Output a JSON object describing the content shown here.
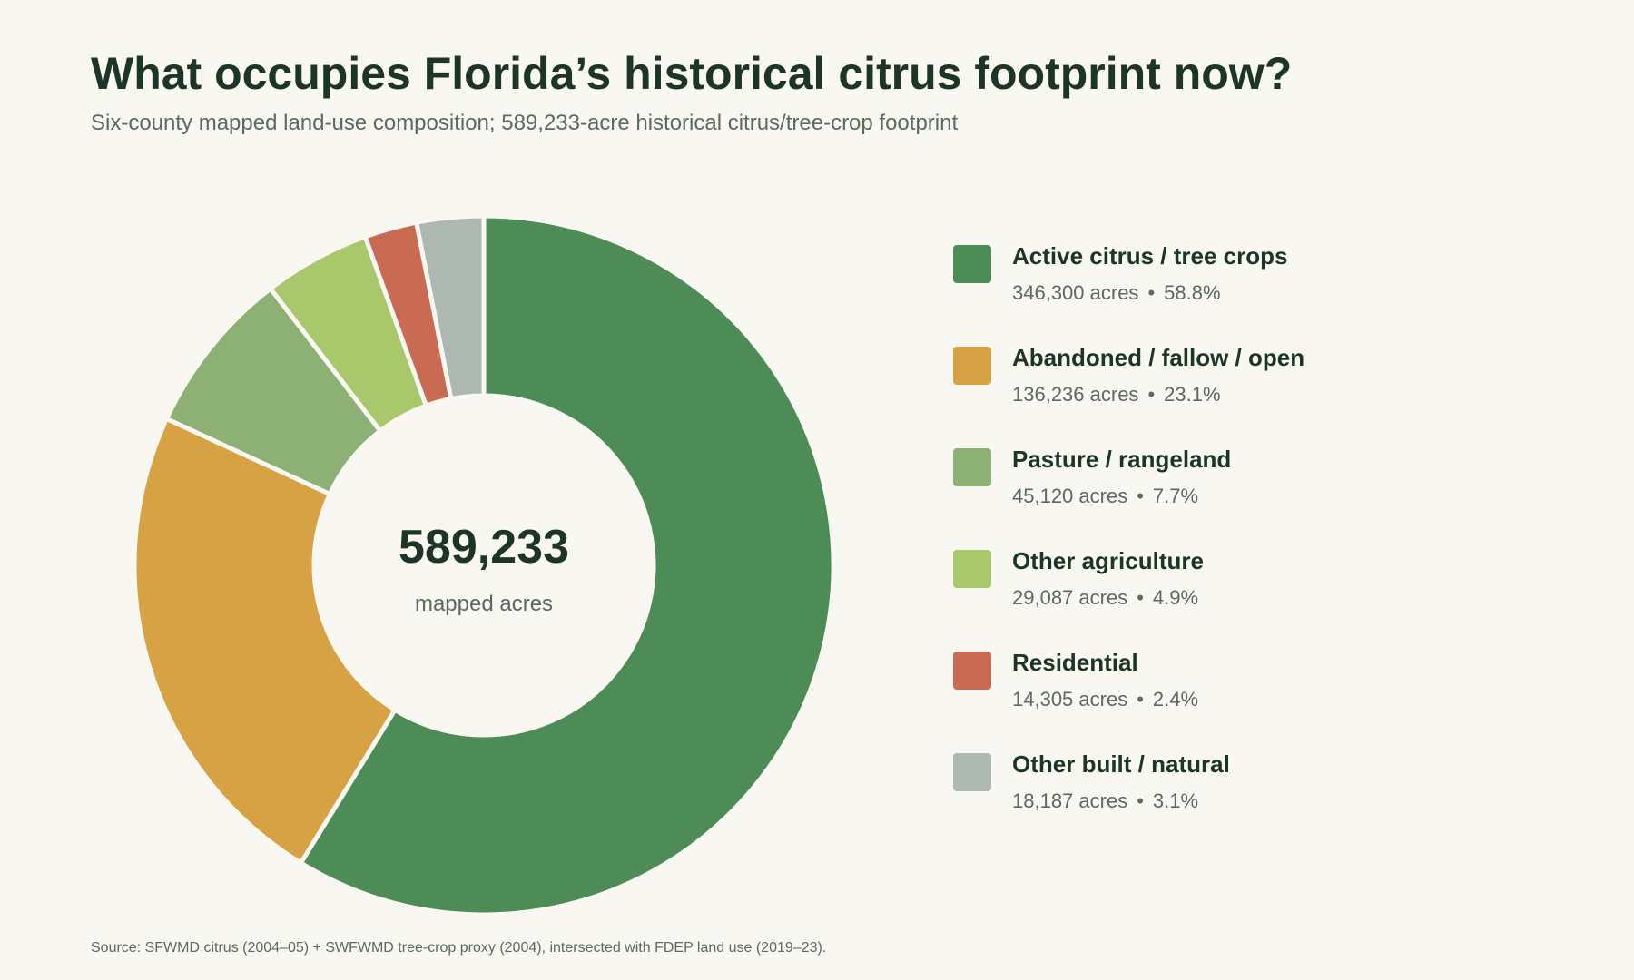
{
  "chart_data": {
    "type": "pie",
    "donut": true,
    "title": "What occupies Florida’s historical citrus footprint now?",
    "subtitle": "Six-county mapped land-use composition; 589,233-acre historical citrus/tree-crop footprint",
    "center_value": "589,233",
    "center_label": "mapped acres",
    "total": 589233,
    "legend_position": "right",
    "slices": [
      {
        "label": "Active citrus / tree crops",
        "value": 346300,
        "acres_text": "346,300 acres",
        "percent_text": "58.8%",
        "color": "#4e8c57"
      },
      {
        "label": "Abandoned / fallow / open",
        "value": 136236,
        "acres_text": "136,236 acres",
        "percent_text": "23.1%",
        "color": "#d6a244"
      },
      {
        "label": "Pasture / rangeland",
        "value": 45120,
        "acres_text": "45,120 acres",
        "percent_text": "7.7%",
        "color": "#8db074"
      },
      {
        "label": "Other agriculture",
        "value": 29087,
        "acres_text": "29,087 acres",
        "percent_text": "4.9%",
        "color": "#a9c76b"
      },
      {
        "label": "Residential",
        "value": 14305,
        "acres_text": "14,305 acres",
        "percent_text": "2.4%",
        "color": "#c96a52"
      },
      {
        "label": "Other built / natural",
        "value": 18187,
        "acres_text": "18,187 acres",
        "percent_text": "3.1%",
        "color": "#adb8b2"
      }
    ],
    "source": "Source: SFWMD citrus (2004–05) + SWFWMD tree-crop proxy (2004), intersected with FDEP land use (2019–23)."
  }
}
